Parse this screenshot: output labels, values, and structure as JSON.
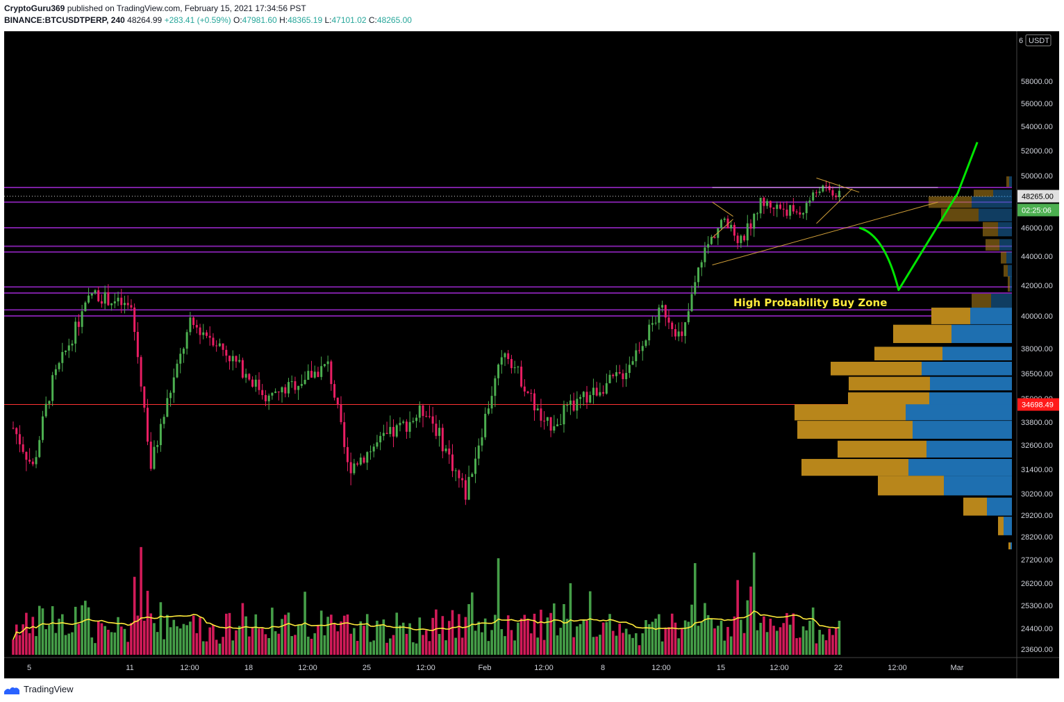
{
  "header": {
    "author": "CryptoGuru369",
    "published_text": "published on TradingView.com, February 15, 2021 17:34:56 PST",
    "symbol": "BINANCE:BTCUSDTPERP, 240",
    "last": "48264.99",
    "change": "+283.41 (+0.59%)",
    "o_label": "O:",
    "o_value": "47981.60",
    "h_label": "H:",
    "h_value": "48365.19",
    "l_label": "L:",
    "l_value": "47101.02",
    "c_label": "C:",
    "c_value": "48265.00"
  },
  "footer": {
    "brand": "TradingView"
  },
  "colors": {
    "background": "#000000",
    "up": "#4caf50",
    "down": "#e91e63",
    "level_line": "#7b1fa2",
    "arrow": "#00e600",
    "annotation": "#ffeb3b",
    "volume_ma": "#ffeb3b",
    "vp_up": "#b8861b",
    "vp_down": "#1e6fb0",
    "price_tag": "#e0e0e0",
    "timer_tag": "#4caf50",
    "red_tag": "#ff1a1a"
  },
  "chart_data": {
    "type": "candlestick",
    "currency_label": "USDT",
    "axis_top_label": "6",
    "y_ticks": [
      "58000.00",
      "56000.00",
      "54000.00",
      "52000.00",
      "50000.00",
      "48000.00",
      "46000.00",
      "44000.00",
      "42000.00",
      "40000.00",
      "38000.00",
      "36500.00",
      "35000.00",
      "33800.00",
      "32600.00",
      "31400.00",
      "30200.00",
      "29200.00",
      "28200.00",
      "27200.00",
      "26200.00",
      "25300.00",
      "24400.00",
      "23600.00"
    ],
    "y_tick_values": [
      58000,
      56000,
      54000,
      52000,
      50000,
      48000,
      46000,
      44000,
      42000,
      40000,
      38000,
      36500,
      35000,
      33800,
      32600,
      31400,
      30200,
      29200,
      28200,
      27200,
      26200,
      25300,
      24400,
      23600
    ],
    "x_ticks": [
      "5",
      "11",
      "12:00",
      "18",
      "12:00",
      "25",
      "12:00",
      "Feb",
      "12:00",
      "8",
      "12:00",
      "15",
      "12:00",
      "22",
      "12:00",
      "Mar"
    ],
    "current_price": "48265.00",
    "countdown": "02:25:06",
    "marked_price": "34698.49",
    "horizontal_levels": [
      49000,
      47800,
      46000,
      44700,
      44300,
      41900,
      41500,
      40400,
      40000
    ],
    "annotation": "High Probability Buy Zone",
    "series_start": "2021-01-04",
    "series_end": "2021-02-15",
    "key_prices": [
      {
        "date": "2021-01-04",
        "price": 33500
      },
      {
        "date": "2021-01-05",
        "price": 31500
      },
      {
        "date": "2021-01-06",
        "price": 36000
      },
      {
        "date": "2021-01-08",
        "price": 41500
      },
      {
        "date": "2021-01-10",
        "price": 40500
      },
      {
        "date": "2021-01-11",
        "price": 31500
      },
      {
        "date": "2021-01-13",
        "price": 39500
      },
      {
        "date": "2021-01-14",
        "price": 38800
      },
      {
        "date": "2021-01-17",
        "price": 35000
      },
      {
        "date": "2021-01-20",
        "price": 37000
      },
      {
        "date": "2021-01-21",
        "price": 31500
      },
      {
        "date": "2021-01-25",
        "price": 34500
      },
      {
        "date": "2021-01-27",
        "price": 30200
      },
      {
        "date": "2021-01-29",
        "price": 38000
      },
      {
        "date": "2021-01-31",
        "price": 33500
      },
      {
        "date": "2021-02-04",
        "price": 36500
      },
      {
        "date": "2021-02-06",
        "price": 40500
      },
      {
        "date": "2021-02-07",
        "price": 38500
      },
      {
        "date": "2021-02-08",
        "price": 44000
      },
      {
        "date": "2021-02-09",
        "price": 46500
      },
      {
        "date": "2021-02-10",
        "price": 45000
      },
      {
        "date": "2021-02-11",
        "price": 47800
      },
      {
        "date": "2021-02-13",
        "price": 47000
      },
      {
        "date": "2021-02-14",
        "price": 49000
      },
      {
        "date": "2021-02-15",
        "price": 48265
      }
    ],
    "projection": [
      {
        "date": "2021-02-16",
        "price": 46000
      },
      {
        "date": "2021-02-18",
        "price": 41700
      },
      {
        "date": "2021-02-21",
        "price": 48500
      },
      {
        "date": "2021-02-22",
        "price": 52700
      }
    ],
    "volume_profile": [
      {
        "price": 49500,
        "up": 4,
        "down": 4
      },
      {
        "price": 48500,
        "up": 28,
        "down": 27
      },
      {
        "price": 47800,
        "up": 62,
        "down": 58
      },
      {
        "price": 46900,
        "up": 54,
        "down": 48
      },
      {
        "price": 45900,
        "up": 22,
        "down": 20
      },
      {
        "price": 44800,
        "up": 20,
        "down": 18
      },
      {
        "price": 43900,
        "up": 8,
        "down": 8
      },
      {
        "price": 43000,
        "up": 6,
        "down": 6
      },
      {
        "price": 42100,
        "up": 3,
        "down": 3
      },
      {
        "price": 41000,
        "up": 28,
        "down": 30
      },
      {
        "price": 40000,
        "up": 56,
        "down": 60
      },
      {
        "price": 38900,
        "up": 84,
        "down": 87
      },
      {
        "price": 37700,
        "up": 98,
        "down": 100
      },
      {
        "price": 36800,
        "up": 131,
        "down": 130
      },
      {
        "price": 35900,
        "up": 117,
        "down": 118
      },
      {
        "price": 35000,
        "up": 117,
        "down": 119
      },
      {
        "price": 34300,
        "up": 160,
        "down": 153
      },
      {
        "price": 33400,
        "up": 166,
        "down": 143
      },
      {
        "price": 32400,
        "up": 128,
        "down": 123
      },
      {
        "price": 31500,
        "up": 154,
        "down": 149
      },
      {
        "price": 30600,
        "up": 95,
        "down": 98
      },
      {
        "price": 29600,
        "up": 34,
        "down": 36
      },
      {
        "price": 28700,
        "up": 8,
        "down": 12
      },
      {
        "price": 27800,
        "up": 3,
        "down": 2
      }
    ]
  }
}
